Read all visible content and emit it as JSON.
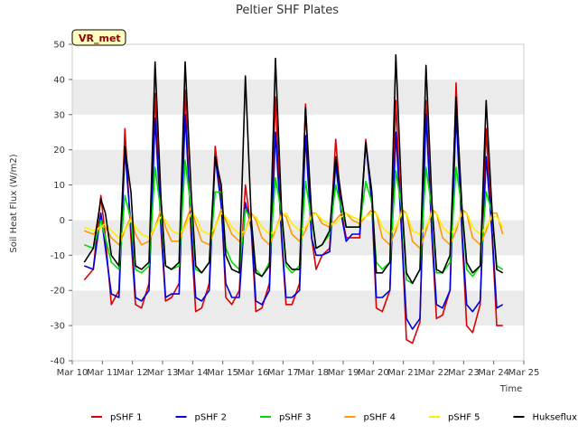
{
  "chart_data": {
    "type": "line",
    "title": "Peltier SHF Plates",
    "xlabel": "Time",
    "ylabel": "Soil Heat Flux (W/m2)",
    "badge": "VR_met",
    "xlim": [
      10,
      25
    ],
    "ylim": [
      -40,
      50
    ],
    "x_ticks": [
      10,
      11,
      12,
      13,
      14,
      15,
      16,
      17,
      18,
      19,
      20,
      21,
      22,
      23,
      24,
      25
    ],
    "x_tick_labels": [
      "Mar 10",
      "Mar 11",
      "Mar 12",
      "Mar 13",
      "Mar 14",
      "Mar 15",
      "Mar 16",
      "Mar 17",
      "Mar 18",
      "Mar 19",
      "Mar 20",
      "Mar 21",
      "Mar 22",
      "Mar 23",
      "Mar 24",
      "Mar 25"
    ],
    "y_ticks": [
      -40,
      -30,
      -20,
      -10,
      0,
      10,
      20,
      30,
      40,
      50
    ],
    "y_tick_labels": [
      "-40",
      "-30",
      "-20",
      "-10",
      "0",
      "10",
      "20",
      "30",
      "40",
      "50"
    ],
    "grid": "horizontal alternating bands",
    "legend_position": "bottom",
    "colors": {
      "pSHF 1": "#dd0000",
      "pSHF 2": "#0000dd",
      "pSHF 3": "#00dd00",
      "pSHF 4": "#ff9900",
      "pSHF 5": "#ffee00",
      "Hukseflux": "#000000",
      "badge_bg": "#ffffc0",
      "band": "#ebebeb"
    },
    "x": [
      10.4,
      10.7,
      10.95,
      11.1,
      11.3,
      11.55,
      11.75,
      11.95,
      12.1,
      12.3,
      12.55,
      12.75,
      12.95,
      13.1,
      13.3,
      13.55,
      13.75,
      13.95,
      14.1,
      14.3,
      14.55,
      14.75,
      14.95,
      15.1,
      15.3,
      15.55,
      15.75,
      15.95,
      16.1,
      16.3,
      16.55,
      16.75,
      16.95,
      17.1,
      17.3,
      17.55,
      17.75,
      17.95,
      18.1,
      18.3,
      18.55,
      18.75,
      18.95,
      19.1,
      19.3,
      19.55,
      19.75,
      19.95,
      20.1,
      20.3,
      20.55,
      20.75,
      20.95,
      21.1,
      21.3,
      21.55,
      21.75,
      21.95,
      22.1,
      22.3,
      22.55,
      22.75,
      22.95,
      23.1,
      23.3,
      23.55,
      23.75,
      23.95,
      24.1,
      24.3
    ],
    "series": [
      {
        "name": "pSHF 1",
        "values": [
          -17,
          -14,
          7,
          -5,
          -24,
          -20,
          26,
          -5,
          -24,
          -25,
          -18,
          36,
          -3,
          -23,
          -22,
          -18,
          37,
          -5,
          -26,
          -25,
          -18,
          21,
          6,
          -22,
          -24,
          -20,
          10,
          -3,
          -26,
          -25,
          -18,
          35,
          -5,
          -24,
          -24,
          -18,
          33,
          -5,
          -14,
          -10,
          -8,
          23,
          2,
          -5,
          -5,
          -5,
          23,
          5,
          -25,
          -26,
          -20,
          34,
          -5,
          -34,
          -35,
          -29,
          34,
          -5,
          -28,
          -27,
          -20,
          39,
          -5,
          -30,
          -32,
          -24,
          26,
          -5,
          -30,
          -30
        ]
      },
      {
        "name": "pSHF 2",
        "values": [
          -13,
          -14,
          2,
          -8,
          -21,
          -22,
          20,
          -2,
          -22,
          -23,
          -20,
          29,
          -1,
          -22,
          -21,
          -21,
          30,
          -2,
          -22,
          -23,
          -20,
          18,
          4,
          -18,
          -22,
          -22,
          5,
          -2,
          -23,
          -24,
          -20,
          25,
          -4,
          -22,
          -22,
          -20,
          24,
          -5,
          -10,
          -10,
          -9,
          16,
          1,
          -6,
          -4,
          -4,
          22,
          5,
          -22,
          -22,
          -20,
          25,
          -5,
          -28,
          -31,
          -28,
          30,
          -4,
          -24,
          -25,
          -20,
          30,
          -4,
          -24,
          -26,
          -23,
          18,
          -4,
          -25,
          -24
        ]
      },
      {
        "name": "pSHF 3",
        "values": [
          -7,
          -8,
          0,
          -5,
          -12,
          -14,
          7,
          0,
          -14,
          -15,
          -13,
          15,
          2,
          -13,
          -14,
          -13,
          17,
          3,
          -14,
          -15,
          -12,
          8,
          8,
          -8,
          -12,
          -14,
          3,
          0,
          -14,
          -16,
          -12,
          12,
          2,
          -13,
          -15,
          -13,
          11,
          0,
          -8,
          -7,
          -4,
          10,
          3,
          -2,
          -2,
          -2,
          11,
          5,
          -12,
          -14,
          -12,
          14,
          3,
          -17,
          -18,
          -14,
          15,
          3,
          -15,
          -15,
          -12,
          15,
          3,
          -14,
          -16,
          -13,
          8,
          2,
          -13,
          -14
        ]
      },
      {
        "name": "pSHF 4",
        "values": [
          -3,
          -4,
          -2,
          -2,
          -5,
          -7,
          -3,
          1,
          -4,
          -7,
          -6,
          -2,
          3,
          -2,
          -6,
          -6,
          -1,
          4,
          -1,
          -6,
          -7,
          -2,
          3,
          0,
          -4,
          -6,
          -3,
          2,
          0,
          -5,
          -7,
          -3,
          2,
          1,
          -4,
          -6,
          -3,
          2,
          2,
          -1,
          -2,
          0,
          2,
          2,
          0,
          -1,
          1,
          3,
          2,
          -5,
          -7,
          -3,
          3,
          2,
          -6,
          -8,
          -3,
          3,
          2,
          -5,
          -7,
          -3,
          3,
          2,
          -5,
          -7,
          -3,
          2,
          2,
          -4
        ]
      },
      {
        "name": "pSHF 5",
        "values": [
          -2,
          -3,
          -2,
          -1,
          -3,
          -5,
          -3,
          0,
          -2,
          -4,
          -5,
          -2,
          1,
          0,
          -3,
          -4,
          -2,
          2,
          1,
          -3,
          -4,
          -2,
          2,
          1,
          -2,
          -4,
          -3,
          1,
          1,
          -2,
          -4,
          -3,
          1,
          2,
          -1,
          -3,
          -2,
          1,
          2,
          0,
          -1,
          -1,
          1,
          2,
          1,
          0,
          1,
          2,
          2,
          -2,
          -4,
          -2,
          2,
          2,
          -3,
          -4,
          -2,
          2,
          2,
          -2,
          -4,
          -2,
          2,
          2,
          -2,
          -4,
          -2,
          1,
          1,
          -2
        ]
      },
      {
        "name": "Hukseflux",
        "values": [
          -12,
          -8,
          6,
          2,
          -10,
          -13,
          21,
          8,
          -13,
          -14,
          -12,
          45,
          6,
          -13,
          -14,
          -12,
          45,
          8,
          -13,
          -15,
          -12,
          18,
          10,
          -10,
          -14,
          -15,
          41,
          0,
          -15,
          -16,
          -13,
          46,
          3,
          -12,
          -14,
          -14,
          32,
          2,
          -8,
          -7,
          -3,
          18,
          6,
          -2,
          -2,
          -2,
          22,
          8,
          -15,
          -15,
          -12,
          47,
          5,
          -15,
          -18,
          -14,
          44,
          5,
          -14,
          -15,
          -10,
          35,
          3,
          -12,
          -15,
          -13,
          34,
          2,
          -14,
          -15
        ]
      }
    ]
  }
}
